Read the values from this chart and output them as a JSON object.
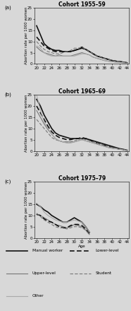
{
  "ages": [
    20,
    21,
    22,
    23,
    24,
    25,
    26,
    27,
    28,
    29,
    30,
    31,
    32,
    33,
    34,
    35,
    36,
    37,
    38,
    39,
    40,
    41,
    42,
    43,
    44
  ],
  "panels": [
    {
      "title": "Cohort 1955–59",
      "label": "(a)",
      "manual_worker": [
        17,
        13,
        9,
        7.5,
        6.5,
        6,
        6,
        5.5,
        5.5,
        5.5,
        6,
        6.5,
        7,
        6.5,
        5.5,
        4.5,
        3.5,
        3,
        2.5,
        2,
        1.5,
        1.2,
        1,
        0.8,
        0.5
      ],
      "upper_level": [
        7.5,
        6,
        5,
        4.5,
        4,
        3.5,
        4,
        3.5,
        3.5,
        3.5,
        4,
        4.5,
        5,
        4.5,
        4,
        3,
        2.5,
        2,
        1.5,
        1.2,
        1,
        0.8,
        0.7,
        0.5,
        0.3
      ],
      "lower_level": [
        12,
        10,
        8,
        7,
        6,
        5.5,
        5.5,
        5.5,
        5.5,
        5.5,
        6,
        6.5,
        7.5,
        6.5,
        5.5,
        4.5,
        3.5,
        3,
        2.5,
        2,
        1.5,
        1.2,
        1,
        0.8,
        0.5
      ],
      "student": [
        10,
        8,
        6.5,
        5.5,
        5,
        4.5,
        4.5,
        5,
        5.5,
        6,
        7,
        7,
        7.5,
        6.5,
        5.5,
        4.5,
        3.5,
        3,
        2.5,
        2,
        1.5,
        1.2,
        1,
        0.8,
        0.5
      ],
      "other": [
        8,
        7,
        5,
        4,
        3.5,
        3.5,
        3.5,
        3.5,
        3.5,
        3.5,
        3.5,
        4,
        4.5,
        4.5,
        4,
        3,
        2.5,
        2,
        1.5,
        1.2,
        1,
        0.8,
        0.7,
        0.5,
        0.3
      ],
      "ylim": [
        0,
        25
      ]
    },
    {
      "title": "Cohort 1965–69",
      "label": "(b)",
      "manual_worker": [
        23,
        20,
        16,
        13,
        10,
        8,
        7,
        6.5,
        6,
        5.5,
        5.5,
        5.5,
        5.5,
        5.5,
        5,
        4.5,
        4,
        3.5,
        3,
        2.5,
        2,
        1.5,
        1,
        0.7,
        0.3
      ],
      "upper_level": [
        18,
        15,
        12,
        9.5,
        7.5,
        5.5,
        4.5,
        4,
        4,
        4,
        4,
        4.5,
        5,
        4.5,
        4,
        3.5,
        3,
        2.5,
        2,
        1.5,
        1.2,
        1,
        0.7,
        0.5,
        0.2
      ],
      "lower_level": [
        20,
        17,
        14,
        11,
        8.5,
        7,
        6,
        5.5,
        5,
        5,
        5.5,
        5.5,
        6,
        5.5,
        5,
        4,
        3.5,
        3,
        2.5,
        2,
        1.5,
        1.2,
        0.8,
        0.5,
        0.2
      ],
      "student": [
        14,
        12,
        10,
        8,
        6,
        5,
        4.5,
        4,
        4,
        4,
        4.5,
        5,
        5.5,
        5,
        4.5,
        4,
        3.5,
        3,
        2.5,
        2,
        1.5,
        1.2,
        0.8,
        0.5,
        0.2
      ],
      "other": [
        25,
        18,
        13,
        10,
        7.5,
        5.5,
        4.5,
        4,
        3.5,
        3.5,
        4,
        4.5,
        5,
        4.5,
        4,
        3.5,
        3,
        2.5,
        2,
        1.5,
        1.2,
        1,
        0.7,
        0.5,
        0.2
      ],
      "ylim": [
        0,
        25
      ]
    },
    {
      "title": "Cohort 1975–79",
      "label": "(c)",
      "manual_worker": [
        15,
        14,
        12.5,
        11.5,
        10,
        9,
        8,
        7,
        7,
        8,
        9,
        8,
        7,
        5,
        2.5,
        null,
        null,
        null,
        null,
        null,
        null,
        null,
        null,
        null,
        null
      ],
      "upper_level": [
        10.5,
        10,
        9,
        8,
        7,
        6,
        5.5,
        5,
        4.5,
        5,
        6,
        5.5,
        5,
        3.5,
        1.5,
        null,
        null,
        null,
        null,
        null,
        null,
        null,
        null,
        null,
        null
      ],
      "lower_level": [
        10.5,
        10,
        8.5,
        7.5,
        7,
        6,
        5,
        4.5,
        4.5,
        5.5,
        6,
        6,
        5.5,
        4,
        2,
        null,
        null,
        null,
        null,
        null,
        null,
        null,
        null,
        null,
        null
      ],
      "student": [
        11,
        9.5,
        8,
        7,
        6,
        5,
        4.5,
        4.5,
        4,
        4.5,
        5,
        5,
        4.5,
        3.5,
        1.5,
        null,
        null,
        null,
        null,
        null,
        null,
        null,
        null,
        null,
        null
      ],
      "other": [
        15.5,
        14,
        11.5,
        10,
        9,
        8,
        7.5,
        7,
        7,
        7.5,
        8,
        7.5,
        7,
        5,
        2.5,
        null,
        null,
        null,
        null,
        null,
        null,
        null,
        null,
        null,
        null
      ],
      "ylim": [
        0,
        25
      ]
    }
  ],
  "line_styles": {
    "manual_worker": {
      "color": "#111111",
      "lw": 1.2,
      "ls": "-"
    },
    "upper_level": {
      "color": "#777777",
      "lw": 0.8,
      "ls": "-"
    },
    "lower_level": {
      "color": "#111111",
      "lw": 1.2,
      "ls": "--",
      "dashes": [
        4,
        2
      ]
    },
    "student": {
      "color": "#777777",
      "lw": 0.8,
      "ls": "--",
      "dashes": [
        4,
        2
      ]
    },
    "other": {
      "color": "#aaaaaa",
      "lw": 0.8,
      "ls": "-"
    }
  },
  "legend_rows": [
    [
      {
        "label": "Manual worker",
        "color": "#111111",
        "lw": 1.2,
        "ls": "-",
        "dashes": null
      },
      {
        "label": "Lower-level",
        "color": "#111111",
        "lw": 1.2,
        "ls": "--",
        "dashes": [
          4,
          2
        ]
      }
    ],
    [
      {
        "label": "Upper-level",
        "color": "#777777",
        "lw": 0.8,
        "ls": "-",
        "dashes": null
      },
      {
        "label": "Student",
        "color": "#777777",
        "lw": 0.8,
        "ls": "--",
        "dashes": [
          4,
          2
        ]
      }
    ],
    [
      {
        "label": "Other",
        "color": "#aaaaaa",
        "lw": 0.8,
        "ls": "-",
        "dashes": null
      }
    ]
  ],
  "ylabel": "Abortion rate per 1000 women",
  "xlabel": "Age",
  "bg_color": "#d8d8d8",
  "panel_bg": "#d8d8d8"
}
